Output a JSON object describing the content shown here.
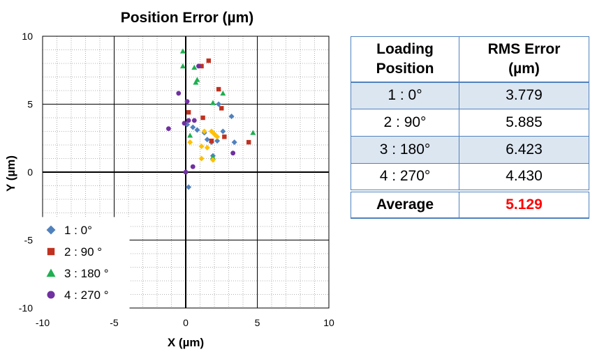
{
  "chart_data": {
    "type": "scatter",
    "title": "Position Error (µm)",
    "xlabel": "X (µm)",
    "ylabel": "Y (µm)",
    "xlim": [
      -10,
      10
    ],
    "ylim": [
      -10,
      10
    ],
    "xticks": [
      -10,
      -5,
      0,
      5,
      10
    ],
    "yticks": [
      -10,
      -5,
      0,
      5,
      10
    ],
    "grid": true,
    "legend_position": "bottom-left",
    "series": [
      {
        "name": "1 : 0°",
        "marker": "diamond",
        "color": "#4f81bd",
        "points": [
          [
            0.2,
            -1.1
          ],
          [
            0.1,
            3.5
          ],
          [
            0.5,
            3.3
          ],
          [
            0.8,
            3.1
          ],
          [
            1.3,
            2.9
          ],
          [
            1.5,
            2.4
          ],
          [
            1.8,
            2.2
          ],
          [
            2.2,
            2.3
          ],
          [
            2.6,
            3.0
          ],
          [
            2.3,
            5.0
          ],
          [
            3.2,
            4.1
          ],
          [
            3.4,
            2.2
          ],
          [
            1.9,
            1.2
          ]
        ]
      },
      {
        "name": "2 : 90 °",
        "marker": "square",
        "color": "#c0311f",
        "points": [
          [
            1.1,
            7.8
          ],
          [
            1.6,
            8.2
          ],
          [
            2.3,
            6.1
          ],
          [
            2.5,
            4.7
          ],
          [
            0.2,
            4.4
          ],
          [
            1.2,
            4.0
          ],
          [
            1.8,
            2.3
          ],
          [
            2.7,
            2.6
          ],
          [
            4.4,
            2.2
          ]
        ]
      },
      {
        "name": "3 : 180 °",
        "marker": "triangle",
        "color": "#1faf50",
        "points": [
          [
            -0.2,
            8.9
          ],
          [
            -0.2,
            7.8
          ],
          [
            0.6,
            7.7
          ],
          [
            0.8,
            6.8
          ],
          [
            0.7,
            6.6
          ],
          [
            2.6,
            5.8
          ],
          [
            1.9,
            5.1
          ],
          [
            0.3,
            2.7
          ],
          [
            4.7,
            2.9
          ],
          [
            1.9,
            1.1
          ]
        ]
      },
      {
        "name": "4 : 270 °",
        "marker": "circle",
        "color": "#7030a0",
        "points": [
          [
            -0.5,
            5.8
          ],
          [
            0.1,
            5.2
          ],
          [
            -0.1,
            3.6
          ],
          [
            0.2,
            3.8
          ],
          [
            0.6,
            3.8
          ],
          [
            0.9,
            7.8
          ],
          [
            -1.2,
            3.2
          ],
          [
            0.5,
            0.4
          ],
          [
            0.0,
            0.0
          ],
          [
            3.3,
            1.4
          ]
        ]
      },
      {
        "name": "",
        "marker": "diamond",
        "color": "#ffc000",
        "points": [
          [
            0.3,
            2.2
          ],
          [
            1.1,
            1.9
          ],
          [
            1.3,
            3.0
          ],
          [
            1.5,
            1.8
          ],
          [
            1.8,
            3.0
          ],
          [
            2.0,
            2.8
          ],
          [
            1.1,
            1.0
          ],
          [
            1.9,
            0.9
          ],
          [
            2.2,
            2.6
          ]
        ]
      }
    ]
  },
  "table": {
    "headers": [
      "Loading\nPosition",
      "RMS Error\n(µm)"
    ],
    "rows": [
      {
        "position": "1 : 0°",
        "rms": "3.779"
      },
      {
        "position": "2 : 90°",
        "rms": "5.885"
      },
      {
        "position": "3 : 180°",
        "rms": "6.423"
      },
      {
        "position": "4 : 270°",
        "rms": "4.430"
      }
    ],
    "footer": {
      "label": "Average",
      "value": "5.129"
    },
    "colors": {
      "border": "#4f81bd",
      "shaded_row": "#dce6f1",
      "average_value": "#ff0000"
    }
  }
}
